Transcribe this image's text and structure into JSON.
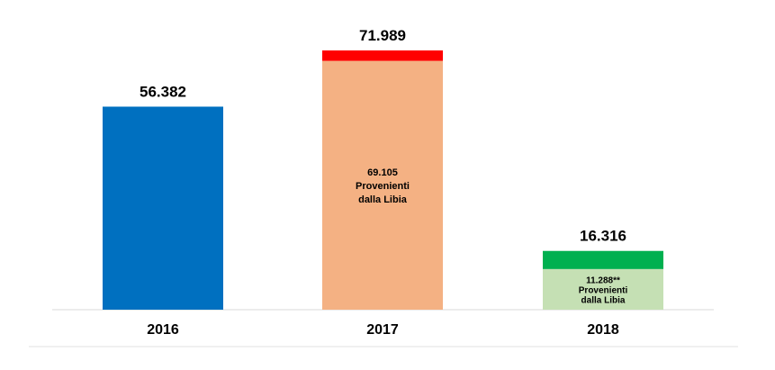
{
  "chart_data": {
    "type": "bar",
    "stacked": true,
    "categories": [
      "2016",
      "2017",
      "2018"
    ],
    "totals": [
      "56.382",
      "71.989",
      "16.316"
    ],
    "total_values": [
      56382,
      71989,
      16316
    ],
    "segments": [
      {
        "category": "2016",
        "part": "total",
        "value": 56382,
        "color": "#0070C0",
        "label_lines": []
      },
      {
        "category": "2017",
        "part": "libia",
        "value": 69105,
        "color": "#F4B183",
        "label_lines": [
          "69.105",
          "Provenienti",
          "dalla Libia"
        ]
      },
      {
        "category": "2017",
        "part": "altro",
        "value": 2884,
        "color": "#FF0000",
        "label_lines": []
      },
      {
        "category": "2018",
        "part": "libia",
        "value": 11288,
        "color": "#C5E0B4",
        "label_lines": [
          "11.288**",
          "Provenienti",
          "dalla Libia"
        ]
      },
      {
        "category": "2018",
        "part": "altro",
        "value": 5028,
        "color": "#00B050",
        "label_lines": []
      }
    ],
    "ylim": [
      0,
      75000
    ],
    "grid": false,
    "legend": "none"
  }
}
